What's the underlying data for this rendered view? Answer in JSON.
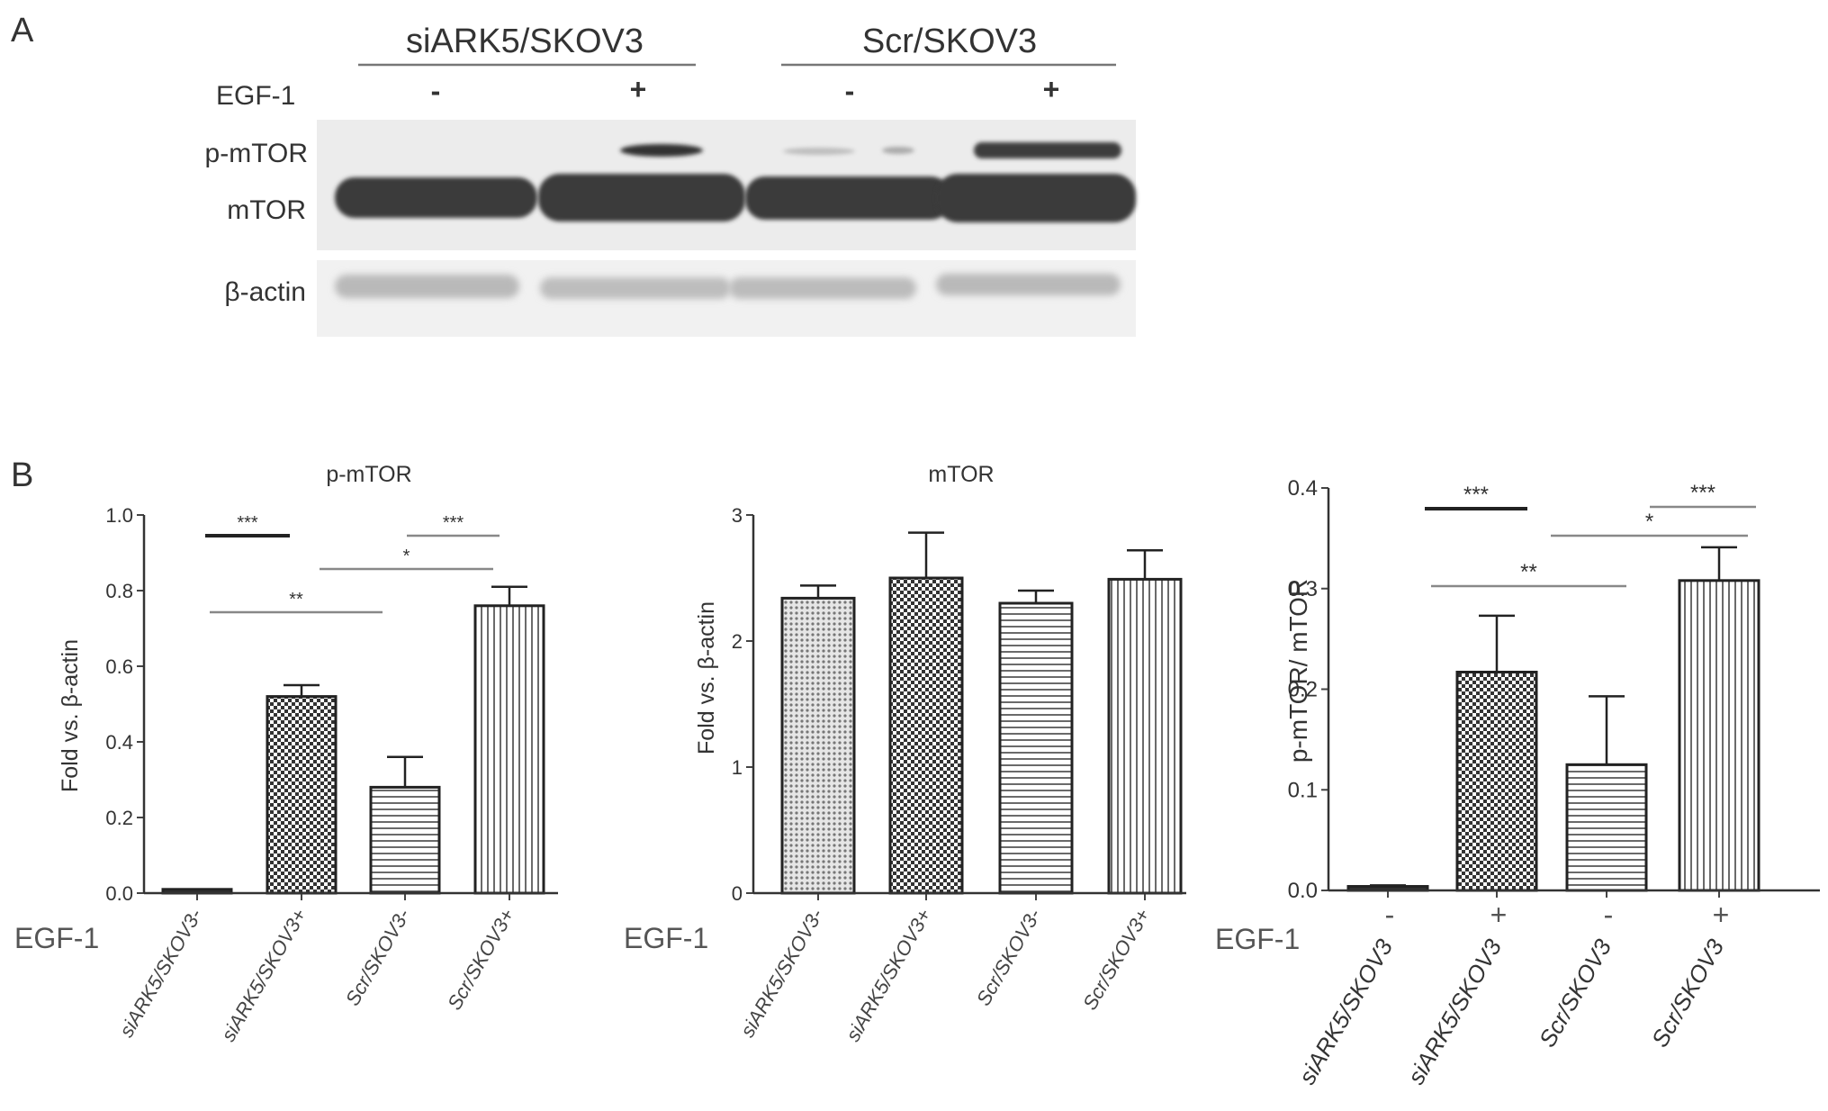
{
  "panel_a": {
    "letter": "A",
    "groups": [
      "siARK5/SKOV3",
      "Scr/SKOV3"
    ],
    "egf_label": "EGF-1",
    "egf_signs": [
      "-",
      "+",
      "-",
      "+"
    ],
    "band_labels": [
      "p-mTOR",
      "mTOR",
      "β-actin"
    ]
  },
  "panel_b": {
    "letter": "B"
  },
  "chart_data": [
    {
      "type": "bar",
      "title": "p-mTOR",
      "ylabel": "Fold vs. β-actin",
      "xlabel": "",
      "ylim": [
        0,
        1.0
      ],
      "yticks": [
        "0.0",
        "0.2",
        "0.4",
        "0.6",
        "0.8",
        "1.0"
      ],
      "egf_label": "EGF-1",
      "categories": [
        "siARK5/SKOV3-",
        "siARK5/SKOV3+",
        "Scr/SKOV3-",
        "Scr/SKOV3+"
      ],
      "values": [
        0.01,
        0.52,
        0.28,
        0.76
      ],
      "errors": [
        0,
        0.03,
        0.08,
        0.05
      ],
      "patterns": [
        "solid",
        "checker",
        "hlines",
        "vlines"
      ],
      "significance": [
        {
          "from": 0,
          "to": 1,
          "label": "***"
        },
        {
          "from": 0,
          "to": 2,
          "label": "**"
        },
        {
          "from": 1,
          "to": 3,
          "label": "*"
        },
        {
          "from": 2,
          "to": 3,
          "label": "***"
        }
      ]
    },
    {
      "type": "bar",
      "title": "mTOR",
      "ylabel": "Fold vs. β-actin",
      "xlabel": "",
      "ylim": [
        0,
        3
      ],
      "yticks": [
        "0",
        "1",
        "2",
        "3"
      ],
      "egf_label": "EGF-1",
      "categories": [
        "siARK5/SKOV3-",
        "siARK5/SKOV3+",
        "Scr/SKOV3-",
        "Scr/SKOV3+"
      ],
      "values": [
        2.34,
        2.5,
        2.3,
        2.49
      ],
      "errors": [
        0.1,
        0.36,
        0.1,
        0.23
      ],
      "patterns": [
        "dots",
        "checker",
        "hlines",
        "vlines"
      ],
      "significance": []
    },
    {
      "type": "bar",
      "title": "",
      "ylabel": "p-mTOR/ mTOR",
      "xlabel": "",
      "ylim": [
        0,
        0.4
      ],
      "yticks": [
        "0.0",
        "0.1",
        "0.2",
        "0.3",
        "0.4"
      ],
      "egf_label": "EGF-1",
      "egf_signs": [
        "-",
        "+",
        "-",
        "+"
      ],
      "categories": [
        "siARK5/SKOV3",
        "siARK5/SKOV3",
        "Scr/SKOV3",
        "Scr/SKOV3"
      ],
      "values": [
        0.004,
        0.217,
        0.125,
        0.308
      ],
      "errors": [
        0.001,
        0.056,
        0.068,
        0.033
      ],
      "patterns": [
        "solid",
        "checker",
        "hlines",
        "vlines"
      ],
      "significance": [
        {
          "from": 0,
          "to": 1,
          "label": "***"
        },
        {
          "from": 0,
          "to": 2,
          "label": "**"
        },
        {
          "from": 1,
          "to": 3,
          "label": "*"
        },
        {
          "from": 2,
          "to": 3,
          "label": "***"
        }
      ]
    }
  ]
}
